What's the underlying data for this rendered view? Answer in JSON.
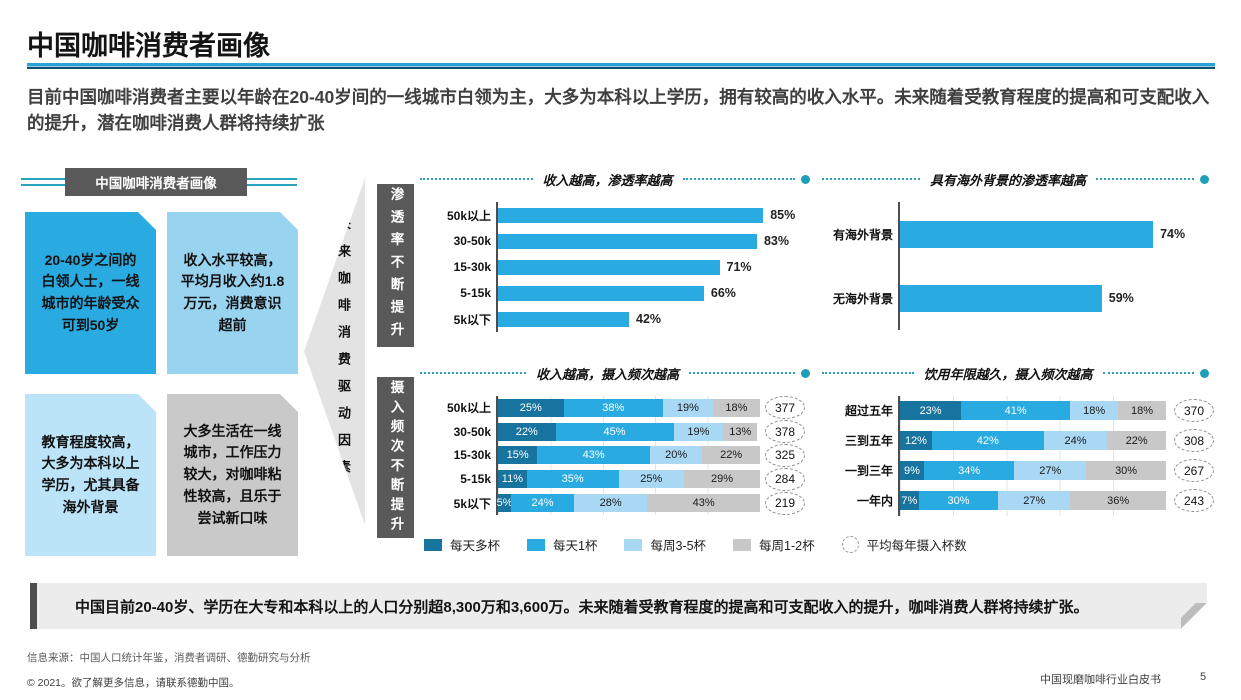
{
  "page": {
    "title": "中国咖啡消费者画像",
    "subtitle": "目前中国咖啡消费者主要以年龄在20-40岁间的一线城市白领为主，大多为本科以上学历，拥有较高的收入水平。未来随着受教育程度的提高和可支配收入的提升，潜在咖啡消费人群将持续扩张",
    "summary": "中国目前20-40岁、学历在大专和本科以上的人口分别超8,300万和3,600万。未来随着受教育程度的提高和可支配收入的提升，咖啡消费人群将持续扩张。",
    "footer": {
      "source": "信息来源：中国人口统计年鉴，消费者调研、德勤研究与分析",
      "copyright": "© 2021。欲了解更多信息，请联系德勤中国。",
      "doc_title": "中国现磨咖啡行业白皮书",
      "page_number": "5"
    }
  },
  "profile": {
    "badge": "中国咖啡消费者画像",
    "boxes": [
      {
        "text": "20-40岁之间的白领人士，一线城市的年龄受众可到50岁",
        "color": "#29ABE2"
      },
      {
        "text": "收入水平较高，平均月收入约1.8万元，消费意识超前",
        "color": "#98D3F0"
      },
      {
        "text": "教育程度较高，大多为本科以上学历，尤其具备海外背景",
        "color": "#BCE4F8"
      },
      {
        "text": "大多生活在一线城市，工作压力较大，对咖啡粘性较高，且乐于尝试新口味",
        "color": "#C9C9C9"
      }
    ],
    "arrow_label": "未来咖啡消费驱动因素",
    "side_labels": [
      "渗透率不断提升",
      "摄入频次不断提升"
    ]
  },
  "colors": {
    "accent_blue": "#29ABE2",
    "dark_blue": "#17749E",
    "light_blue": "#A9D8F5",
    "gray": "#C8C8C8",
    "teal": "#1E9FB8",
    "label_dark_gray": "#595959"
  },
  "legend": {
    "items": [
      {
        "label": "每天多杯",
        "color": "#17749E"
      },
      {
        "label": "每天1杯",
        "color": "#29ABE2"
      },
      {
        "label": "每周3-5杯",
        "color": "#A9D8F5"
      },
      {
        "label": "每周1-2杯",
        "color": "#C8C8C8"
      }
    ],
    "circle_label": "平均每年摄入杯数"
  },
  "chart_data": [
    {
      "type": "bar",
      "title": "收入越高，渗透率越高",
      "categories": [
        "50k以上",
        "30-50k",
        "15-30k",
        "5-15k",
        "5k以下"
      ],
      "values": [
        85,
        83,
        71,
        66,
        42
      ],
      "unit": "%",
      "xlim": [
        0,
        100
      ],
      "bar_color": "#29ABE2"
    },
    {
      "type": "bar",
      "title": "具有海外背景的渗透率越高",
      "categories": [
        "有海外背景",
        "无海外背景"
      ],
      "values": [
        74,
        59
      ],
      "unit": "%",
      "xlim": [
        0,
        100
      ],
      "bar_color": "#29ABE2"
    },
    {
      "type": "stacked-bar",
      "title": "收入越高，摄入频次越高",
      "categories": [
        "50k以上",
        "30-50k",
        "15-30k",
        "5-15k",
        "5k以下"
      ],
      "unit": "%",
      "xlim": [
        0,
        100
      ],
      "series": [
        {
          "name": "每天多杯",
          "color": "#17749E",
          "label_color": "#FFFFFF",
          "values": [
            25,
            22,
            15,
            11,
            5
          ]
        },
        {
          "name": "每天1杯",
          "color": "#29ABE2",
          "label_color": "#FFFFFF",
          "values": [
            38,
            45,
            43,
            35,
            24
          ]
        },
        {
          "name": "每周3-5杯",
          "color": "#A9D8F5",
          "label_color": "#1A1A1A",
          "values": [
            19,
            19,
            20,
            25,
            28
          ]
        },
        {
          "name": "每周1-2杯",
          "color": "#C8C8C8",
          "label_color": "#1A1A1A",
          "values": [
            18,
            13,
            22,
            29,
            43
          ]
        }
      ],
      "annotations": {
        "label": "平均每年摄入杯数",
        "values": [
          377,
          378,
          325,
          284,
          219
        ]
      }
    },
    {
      "type": "stacked-bar",
      "title": "饮用年限越久，摄入频次越高",
      "categories": [
        "超过五年",
        "三到五年",
        "一到三年",
        "一年内"
      ],
      "unit": "%",
      "xlim": [
        0,
        100
      ],
      "series": [
        {
          "name": "每天多杯",
          "color": "#17749E",
          "label_color": "#FFFFFF",
          "values": [
            23,
            12,
            9,
            7
          ]
        },
        {
          "name": "每天1杯",
          "color": "#29ABE2",
          "label_color": "#FFFFFF",
          "values": [
            41,
            42,
            34,
            30
          ]
        },
        {
          "name": "每周3-5杯",
          "color": "#A9D8F5",
          "label_color": "#1A1A1A",
          "values": [
            18,
            24,
            27,
            27
          ]
        },
        {
          "name": "每周1-2杯",
          "color": "#C8C8C8",
          "label_color": "#1A1A1A",
          "values": [
            18,
            22,
            30,
            36
          ]
        }
      ],
      "annotations": {
        "label": "平均每年摄入杯数",
        "values": [
          370,
          308,
          267,
          243
        ]
      }
    }
  ]
}
